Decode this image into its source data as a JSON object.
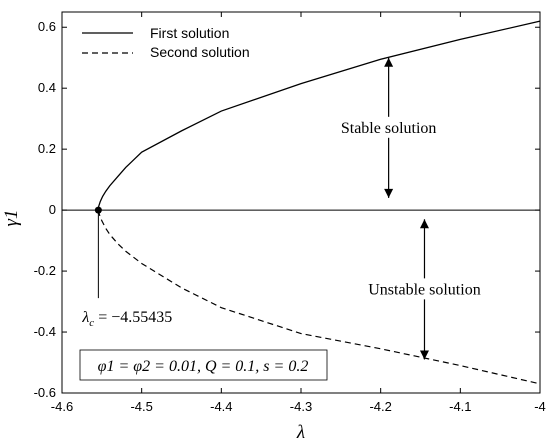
{
  "chart_data": {
    "type": "line",
    "xlabel": "λ",
    "ylabel": "γ1",
    "xlim": [
      -4.6,
      -4.0
    ],
    "ylim": [
      -0.6,
      0.65
    ],
    "xticks": [
      -4.6,
      -4.5,
      -4.4,
      -4.3,
      -4.2,
      -4.1,
      -4.0
    ],
    "xtick_labels": [
      "-4.6",
      "-4.5",
      "-4.4",
      "-4.3",
      "-4.2",
      "-4.1",
      "-4"
    ],
    "yticks": [
      -0.6,
      -0.4,
      -0.2,
      0,
      0.2,
      0.4,
      0.6
    ],
    "ytick_labels": [
      "-0.6",
      "-0.4",
      "-0.2",
      "0",
      "0.2",
      "0.4",
      "0.6"
    ],
    "grid": false,
    "legend_position": "top-left",
    "series": [
      {
        "name": "First solution",
        "style": "solid",
        "color": "#000000",
        "x": [
          -4.55435,
          -4.554,
          -4.552,
          -4.549,
          -4.545,
          -4.54,
          -4.53,
          -4.52,
          -4.51,
          -4.5,
          -4.45,
          -4.4,
          -4.3,
          -4.2,
          -4.1,
          -4.0
        ],
        "y": [
          0.0,
          0.012,
          0.028,
          0.045,
          0.062,
          0.08,
          0.11,
          0.14,
          0.165,
          0.19,
          0.26,
          0.325,
          0.415,
          0.495,
          0.56,
          0.62
        ]
      },
      {
        "name": "Second solution",
        "style": "dashed",
        "color": "#000000",
        "x": [
          -4.55435,
          -4.553,
          -4.55,
          -4.545,
          -4.54,
          -4.53,
          -4.52,
          -4.5,
          -4.45,
          -4.4,
          -4.3,
          -4.2,
          -4.1,
          -4.0
        ],
        "y": [
          0.0,
          -0.015,
          -0.035,
          -0.06,
          -0.08,
          -0.11,
          -0.135,
          -0.175,
          -0.255,
          -0.32,
          -0.405,
          -0.455,
          -0.51,
          -0.57
        ]
      }
    ],
    "zero_line": {
      "y": 0
    },
    "critical_point": {
      "x": -4.55435,
      "y": 0,
      "label_prefix": "λ",
      "label_sub": "c",
      "label_suffix": " = −4.55435"
    },
    "annotations": {
      "stable": {
        "text": "Stable solution",
        "x": -4.19,
        "arrow_y_top": 0.5,
        "arrow_y_bottom": 0.04
      },
      "unstable": {
        "text": "Unstable solution",
        "x": -4.145,
        "arrow_y_top": -0.03,
        "arrow_y_bottom": -0.49
      }
    },
    "parameter_box": "φ1 = φ2 = 0.01, Q = 0.1, s = 0.2"
  }
}
